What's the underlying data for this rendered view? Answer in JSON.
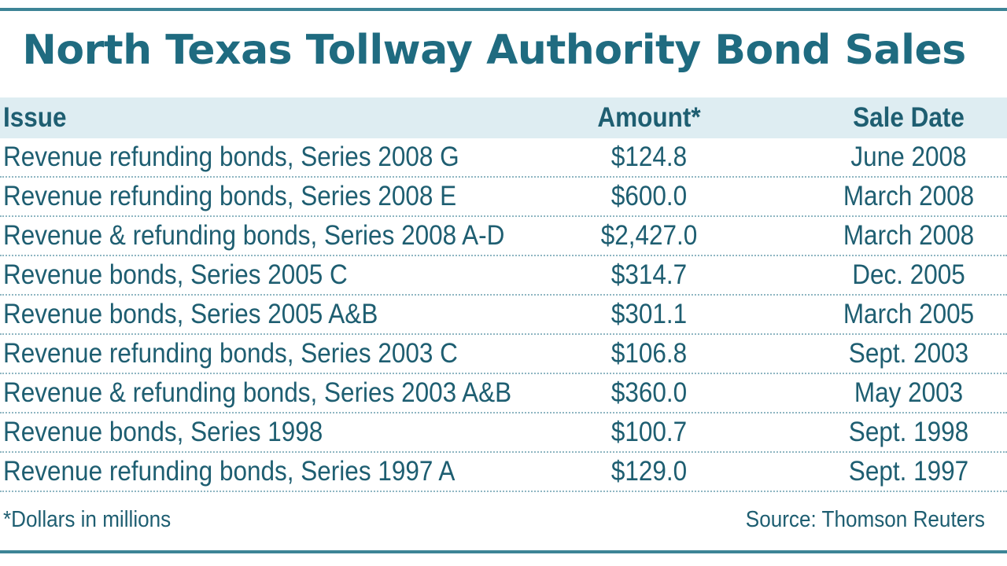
{
  "chart_data": {
    "type": "table",
    "title": "North Texas Tollway Authority Bond Sales",
    "columns": [
      "Issue",
      "Amount*",
      "Sale Date"
    ],
    "rows": [
      {
        "issue": "Revenue refunding bonds, Series 2008 G",
        "amount": "$124.8",
        "date": "June 2008"
      },
      {
        "issue": "Revenue refunding bonds, Series 2008 E",
        "amount": "$600.0",
        "date": "March 2008"
      },
      {
        "issue": "Revenue & refunding bonds, Series 2008 A-D",
        "amount": "$2,427.0",
        "date": "March 2008"
      },
      {
        "issue": "Revenue bonds, Series 2005 C",
        "amount": "$314.7",
        "date": "Dec. 2005"
      },
      {
        "issue": "Revenue bonds, Series 2005 A&B",
        "amount": "$301.1",
        "date": "March 2005"
      },
      {
        "issue": "Revenue refunding bonds, Series 2003 C",
        "amount": "$106.8",
        "date": "Sept. 2003"
      },
      {
        "issue": "Revenue & refunding bonds, Series 2003 A&B",
        "amount": "$360.0",
        "date": "May 2003"
      },
      {
        "issue": "Revenue bonds, Series 1998",
        "amount": "$100.7",
        "date": "Sept. 1998"
      },
      {
        "issue": "Revenue refunding bonds, Series 1997 A",
        "amount": "$129.0",
        "date": "Sept. 1997"
      }
    ],
    "footnote": "*Dollars in millions",
    "source": "Source: Thomson Reuters"
  },
  "colors": {
    "title": "#1f6b80",
    "text": "#1e5e71",
    "header_band": "#deedf2",
    "rule": "#3d8496",
    "divider": "#8fb6c2"
  }
}
